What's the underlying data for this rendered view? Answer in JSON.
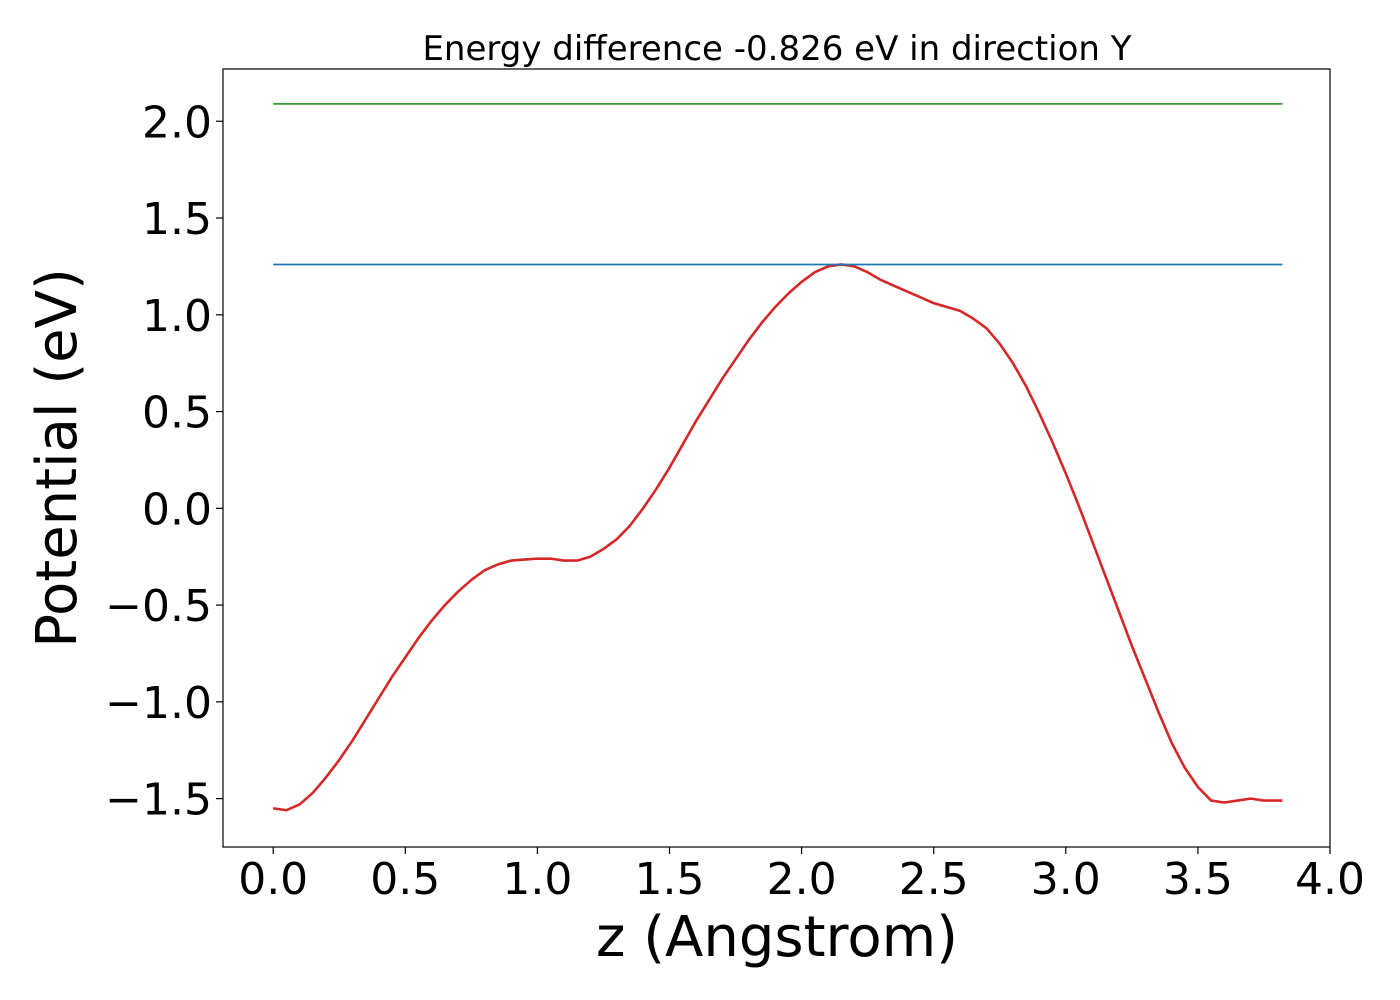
{
  "chart_data": {
    "type": "line",
    "title": "Energy difference -0.826 eV in direction Y",
    "xlabel": "z (Angstrom)",
    "ylabel": "Potential (eV)",
    "xlim": [
      -0.19,
      4.0
    ],
    "ylim": [
      -1.75,
      2.27
    ],
    "x_ticks": [
      0.0,
      0.5,
      1.0,
      1.5,
      2.0,
      2.5,
      3.0,
      3.5,
      4.0
    ],
    "x_tick_labels": [
      "0.0",
      "0.5",
      "1.0",
      "1.5",
      "2.0",
      "2.5",
      "3.0",
      "3.5",
      "4.0"
    ],
    "y_ticks": [
      -1.5,
      -1.0,
      -0.5,
      0.0,
      0.5,
      1.0,
      1.5,
      2.0
    ],
    "y_tick_labels": [
      "−1.5",
      "−1.0",
      "−0.5",
      "0.0",
      "0.5",
      "1.0",
      "1.5",
      "2.0"
    ],
    "grid": false,
    "series": [
      {
        "color": "#d62728",
        "x": [
          0.0,
          0.05,
          0.1,
          0.15,
          0.2,
          0.25,
          0.3,
          0.35,
          0.4,
          0.45,
          0.5,
          0.55,
          0.6,
          0.65,
          0.7,
          0.75,
          0.8,
          0.85,
          0.9,
          0.95,
          1.0,
          1.05,
          1.1,
          1.15,
          1.2,
          1.25,
          1.3,
          1.35,
          1.4,
          1.45,
          1.5,
          1.55,
          1.6,
          1.65,
          1.7,
          1.75,
          1.8,
          1.85,
          1.9,
          1.95,
          2.0,
          2.05,
          2.1,
          2.15,
          2.2,
          2.25,
          2.3,
          2.35,
          2.4,
          2.45,
          2.5,
          2.55,
          2.6,
          2.65,
          2.7,
          2.75,
          2.8,
          2.85,
          2.9,
          2.95,
          3.0,
          3.05,
          3.1,
          3.15,
          3.2,
          3.25,
          3.3,
          3.35,
          3.4,
          3.45,
          3.5,
          3.55,
          3.6,
          3.65,
          3.7,
          3.75,
          3.8,
          3.82
        ],
        "y": [
          -1.55,
          -1.56,
          -1.53,
          -1.47,
          -1.39,
          -1.3,
          -1.2,
          -1.09,
          -0.98,
          -0.87,
          -0.77,
          -0.67,
          -0.58,
          -0.5,
          -0.43,
          -0.37,
          -0.32,
          -0.29,
          -0.27,
          -0.265,
          -0.26,
          -0.26,
          -0.27,
          -0.27,
          -0.25,
          -0.21,
          -0.16,
          -0.09,
          0.0,
          0.1,
          0.21,
          0.33,
          0.45,
          0.56,
          0.67,
          0.77,
          0.87,
          0.96,
          1.04,
          1.11,
          1.17,
          1.22,
          1.25,
          1.26,
          1.25,
          1.22,
          1.18,
          1.15,
          1.12,
          1.09,
          1.06,
          1.04,
          1.02,
          0.98,
          0.93,
          0.85,
          0.75,
          0.63,
          0.49,
          0.34,
          0.18,
          0.01,
          -0.17,
          -0.35,
          -0.53,
          -0.71,
          -0.88,
          -1.05,
          -1.21,
          -1.34,
          -1.44,
          -1.51,
          -1.52,
          -1.51,
          -1.5,
          -1.51,
          -1.51,
          -1.51
        ]
      },
      {
        "color": "#1f77b4",
        "x": [
          0.0,
          3.82
        ],
        "y": [
          1.26,
          1.26
        ]
      },
      {
        "color": "#2ca02c",
        "x": [
          0.0,
          3.82
        ],
        "y": [
          2.09,
          2.09
        ]
      }
    ]
  }
}
